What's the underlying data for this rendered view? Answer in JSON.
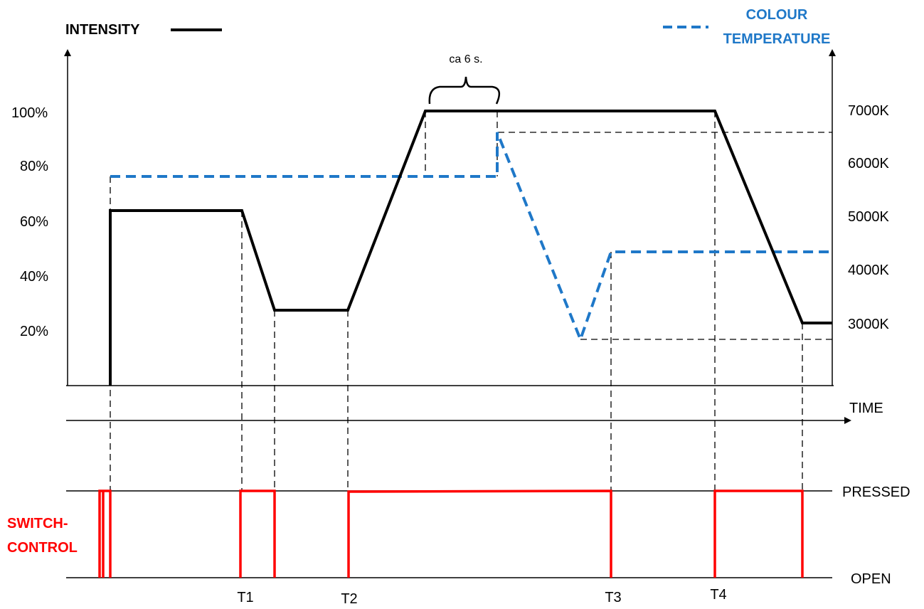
{
  "legend": {
    "intensity": {
      "label": "INTENSITY",
      "color": "#000000",
      "style": "solid"
    },
    "colour_temperature": {
      "label_line1": "COLOUR",
      "label_line2": "TEMPERATURE",
      "color": "#1f78c8",
      "style": "dashed"
    }
  },
  "left_axis": {
    "ticks": [
      "100%",
      "80%",
      "60%",
      "40%",
      "20%"
    ]
  },
  "right_axis": {
    "ticks": [
      "7000K",
      "6000K",
      "5000K",
      "4000K",
      "3000K"
    ]
  },
  "time_axis": {
    "label": "TIME"
  },
  "annotation": {
    "label": "ca 6 s."
  },
  "switch": {
    "label_line1": "SWITCH-",
    "label_line2": "CONTROL",
    "color": "#ff0000",
    "pressed_label": "PRESSED",
    "open_label": "OPEN"
  },
  "time_markers": [
    "T1",
    "T2",
    "T3",
    "T4"
  ]
}
